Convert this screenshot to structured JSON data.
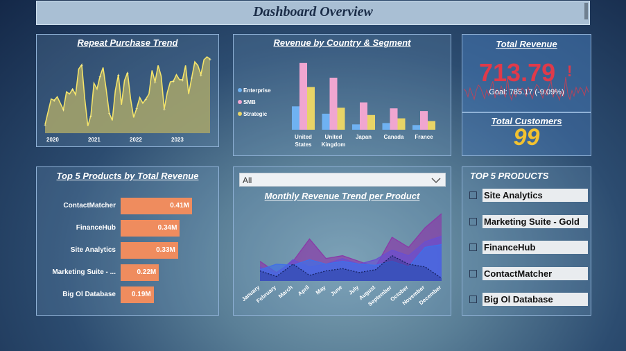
{
  "header": {
    "title": "Dashboard Overview"
  },
  "repeat_purchase": {
    "title": "Repeat Purchase Trend",
    "chart_data": {
      "type": "area",
      "title": "Repeat Purchase Trend",
      "x_ticks": [
        "2020",
        "2021",
        "2022",
        "2023"
      ],
      "values": [
        12,
        30,
        48,
        46,
        51,
        42,
        33,
        58,
        55,
        62,
        54,
        90,
        96,
        48,
        10,
        25,
        70,
        62,
        80,
        92,
        62,
        28,
        18,
        60,
        82,
        40,
        74,
        85,
        48,
        22,
        35,
        50,
        42,
        48,
        55,
        88,
        72,
        95,
        80,
        34,
        57,
        72,
        73,
        82,
        75,
        75,
        95,
        55,
        78,
        100,
        95,
        82,
        103,
        107,
        104
      ]
    }
  },
  "country_segment": {
    "title": "Revenue by Country & Segment",
    "chart_data": {
      "type": "bar",
      "categories": [
        "United States",
        "United Kingdom",
        "Japan",
        "Canada",
        "France"
      ],
      "series": [
        {
          "name": "Enterprise",
          "color": "#6fb2f2",
          "values": [
            35,
            24,
            8,
            10,
            7
          ]
        },
        {
          "name": "SMB",
          "color": "#f0a6d0",
          "values": [
            100,
            78,
            41,
            32,
            28
          ]
        },
        {
          "name": "Strategic",
          "color": "#e8d467",
          "values": [
            64,
            33,
            22,
            17,
            13
          ]
        }
      ],
      "ylim": [
        0,
        105
      ]
    }
  },
  "total_revenue": {
    "title": "Total Revenue",
    "value": "713.79",
    "alert": "!",
    "goal": "Goal: 785.17 (-9.09%)"
  },
  "total_customers": {
    "title": "Total Customers",
    "value": "99"
  },
  "top5_chart": {
    "title": "Top 5 Products by Total Revenue",
    "chart_data": {
      "type": "bar",
      "orientation": "horizontal",
      "categories": [
        "ContactMatcher",
        "FinanceHub",
        "Site Analytics",
        "Marketing Suite - ...",
        "Big Ol Database"
      ],
      "values": [
        0.41,
        0.34,
        0.33,
        0.22,
        0.19
      ],
      "labels": [
        "0.41M",
        "0.34M",
        "0.33M",
        "0.22M",
        "0.19M"
      ],
      "xlim": [
        0,
        0.41
      ]
    }
  },
  "monthly_trend": {
    "dropdown_value": "All",
    "title": "Monthly Revenue Trend per Product",
    "chart_data": {
      "type": "area",
      "title": "Monthly Revenue Trend per Product",
      "categories": [
        "January",
        "February",
        "March",
        "April",
        "May",
        "June",
        "July",
        "August",
        "September",
        "October",
        "November",
        "December"
      ],
      "series": [
        {
          "color": "#8a3aa8",
          "values": [
            35,
            15,
            35,
            75,
            40,
            45,
            35,
            25,
            78,
            60,
            95,
            120
          ]
        },
        {
          "color": "#6a4fd0",
          "values": [
            25,
            12,
            38,
            25,
            30,
            40,
            30,
            38,
            55,
            45,
            70,
            80
          ]
        },
        {
          "color": "#3f6fe8",
          "values": [
            20,
            30,
            28,
            38,
            30,
            35,
            30,
            28,
            35,
            25,
            60,
            65
          ]
        },
        {
          "color": "#1d2a7a",
          "values": [
            18,
            8,
            30,
            10,
            18,
            22,
            15,
            20,
            45,
            30,
            25,
            5
          ]
        }
      ]
    }
  },
  "top5_slicer": {
    "title": "TOP 5 PRODUCTS",
    "items": [
      "Site Analytics",
      "Marketing Suite - Gold",
      "FinanceHub",
      "ContactMatcher",
      "Big Ol Database"
    ]
  }
}
